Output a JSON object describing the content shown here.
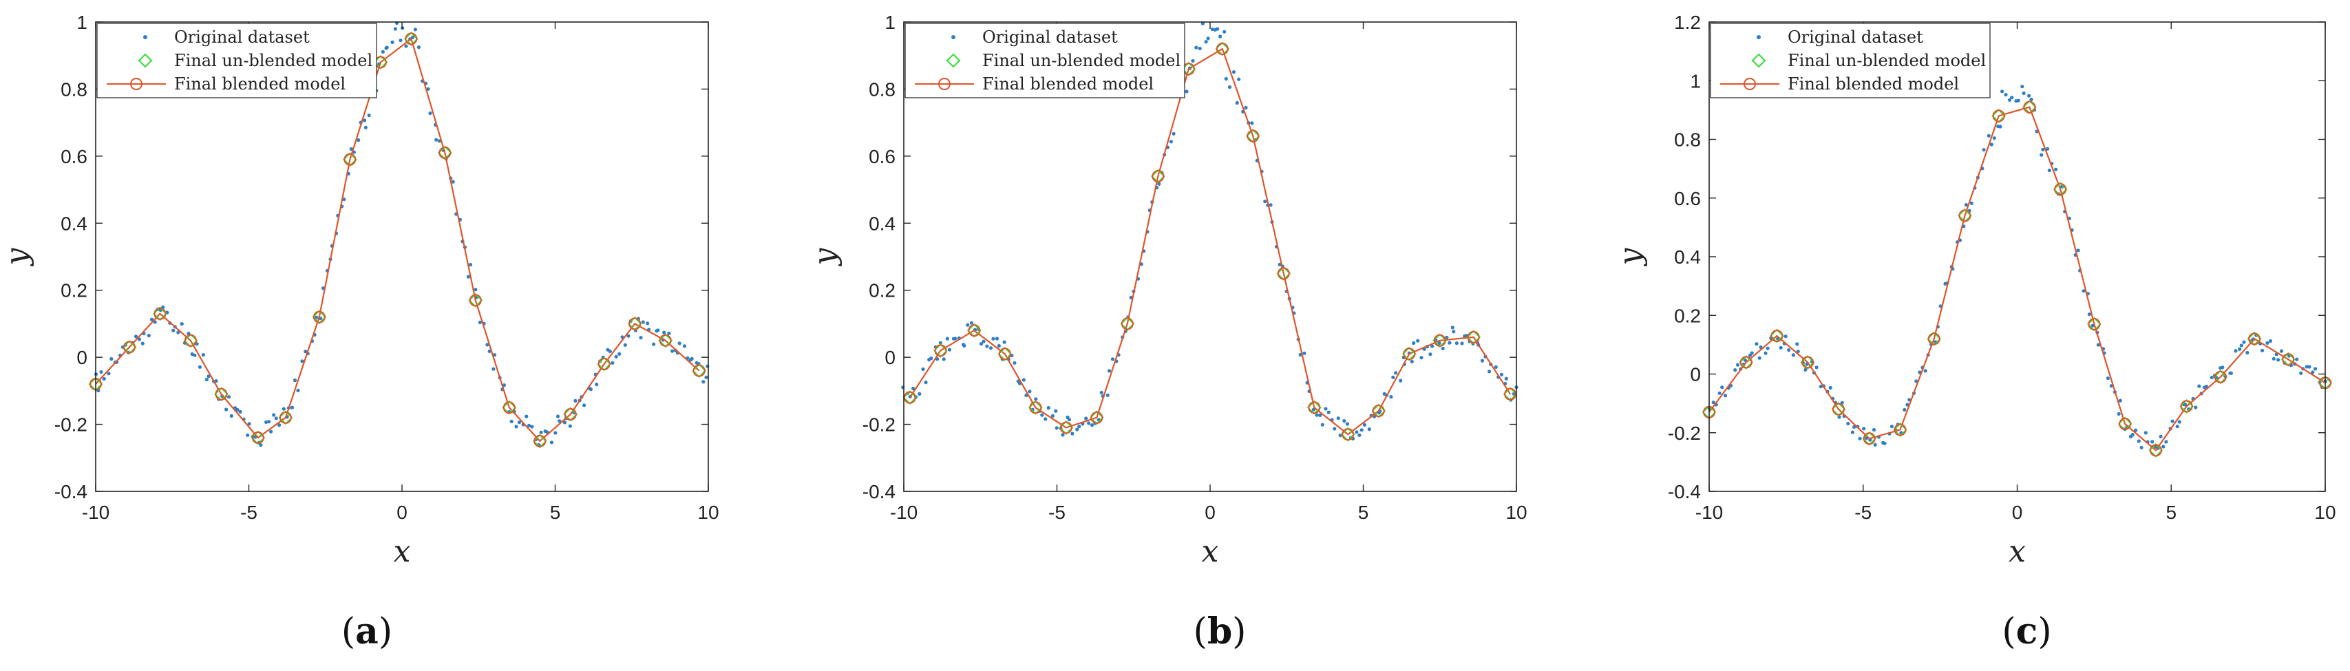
{
  "colors": {
    "dataset": "#2e7fc4",
    "unblended": "#33dd33",
    "blended": "#e0552a",
    "axes": "#222222"
  },
  "chart_data": [
    {
      "type": "scatter",
      "caption": "a",
      "caption_open": "(",
      "caption_close": ")",
      "xlabel": "x",
      "ylabel": "y",
      "xlim": [
        -10,
        10
      ],
      "ylim": [
        -0.4,
        1
      ],
      "xticks": [
        -10,
        -5,
        0,
        5,
        10
      ],
      "yticks": [
        -0.4,
        -0.2,
        0,
        0.2,
        0.4,
        0.6,
        0.8,
        1
      ],
      "xtick_labels": [
        "-10",
        "-5",
        "0",
        "5",
        "10"
      ],
      "ytick_labels": [
        "-0.4",
        "-0.2",
        "0",
        "0.2",
        "0.4",
        "0.6",
        "0.8",
        "1"
      ],
      "legend": [
        "Original dataset",
        "Final un-blended model",
        "Final blended model"
      ],
      "legend_position": "top-left",
      "model_x": [
        -10,
        -8.9,
        -7.9,
        -6.9,
        -5.9,
        -4.7,
        -3.8,
        -2.7,
        -1.7,
        -0.7,
        0.3,
        1.4,
        2.4,
        3.5,
        4.5,
        5.5,
        6.6,
        7.6,
        8.6,
        9.7
      ],
      "model_y": [
        -0.08,
        0.03,
        0.13,
        0.05,
        -0.11,
        -0.24,
        -0.18,
        0.12,
        0.59,
        0.88,
        0.95,
        0.61,
        0.17,
        -0.15,
        -0.25,
        -0.17,
        -0.02,
        0.1,
        0.05,
        -0.04
      ],
      "noise_seed": 11
    },
    {
      "type": "scatter",
      "caption": "b",
      "caption_open": "(",
      "caption_close": ")",
      "xlabel": "x",
      "ylabel": "y",
      "xlim": [
        -10,
        10
      ],
      "ylim": [
        -0.4,
        1
      ],
      "xticks": [
        -10,
        -5,
        0,
        5,
        10
      ],
      "yticks": [
        -0.4,
        -0.2,
        0,
        0.2,
        0.4,
        0.6,
        0.8,
        1
      ],
      "xtick_labels": [
        "-10",
        "-5",
        "0",
        "5",
        "10"
      ],
      "ytick_labels": [
        "-0.4",
        "-0.2",
        "0",
        "0.2",
        "0.4",
        "0.6",
        "0.8",
        "1"
      ],
      "legend": [
        "Original dataset",
        "Final un-blended model",
        "Final blended model"
      ],
      "legend_position": "top-left",
      "model_x": [
        -9.8,
        -8.8,
        -7.7,
        -6.7,
        -5.7,
        -4.7,
        -3.7,
        -2.7,
        -1.7,
        -0.7,
        0.4,
        1.4,
        2.4,
        3.4,
        4.5,
        5.5,
        6.5,
        7.5,
        8.6,
        9.8
      ],
      "model_y": [
        -0.12,
        0.02,
        0.08,
        0.01,
        -0.15,
        -0.21,
        -0.18,
        0.1,
        0.54,
        0.86,
        0.92,
        0.66,
        0.25,
        -0.15,
        -0.23,
        -0.16,
        0.01,
        0.05,
        0.06,
        -0.11
      ],
      "noise_seed": 23
    },
    {
      "type": "scatter",
      "caption": "c",
      "caption_open": "(",
      "caption_close": ")",
      "xlabel": "x",
      "ylabel": "y",
      "xlim": [
        -10,
        10
      ],
      "ylim": [
        -0.4,
        1.2
      ],
      "xticks": [
        -10,
        -5,
        0,
        5,
        10
      ],
      "yticks": [
        -0.4,
        -0.2,
        0,
        0.2,
        0.4,
        0.6,
        0.8,
        1,
        1.2
      ],
      "xtick_labels": [
        "-10",
        "-5",
        "0",
        "5",
        "10"
      ],
      "ytick_labels": [
        "-0.4",
        "-0.2",
        "0",
        "0.2",
        "0.4",
        "0.6",
        "0.8",
        "1",
        "1.2"
      ],
      "legend": [
        "Original dataset",
        "Final un-blended model",
        "Final blended model"
      ],
      "legend_position": "top-left",
      "model_x": [
        -10,
        -8.8,
        -7.8,
        -6.8,
        -5.8,
        -4.8,
        -3.8,
        -2.7,
        -1.7,
        -0.6,
        0.4,
        1.4,
        2.5,
        3.5,
        4.5,
        5.5,
        6.6,
        7.7,
        8.8,
        10
      ],
      "model_y": [
        -0.13,
        0.04,
        0.13,
        0.04,
        -0.12,
        -0.22,
        -0.19,
        0.12,
        0.54,
        0.88,
        0.91,
        0.63,
        0.17,
        -0.17,
        -0.26,
        -0.11,
        -0.01,
        0.12,
        0.05,
        -0.03
      ],
      "noise_seed": 37
    }
  ]
}
